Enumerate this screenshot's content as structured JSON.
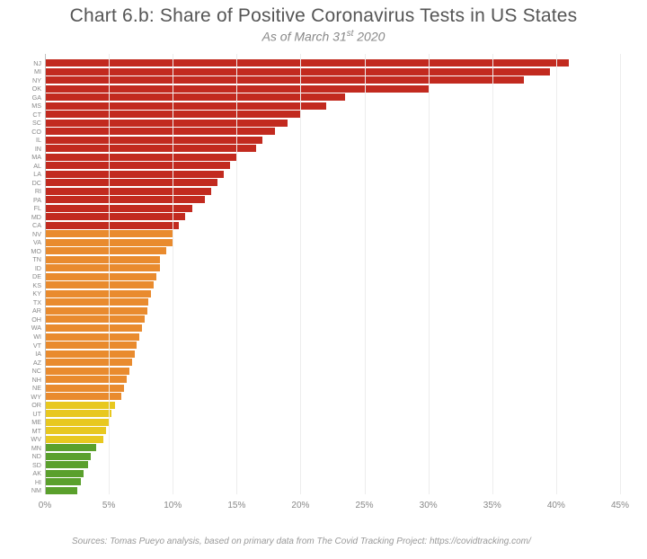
{
  "title": "Chart 6.b: Share of Positive Coronavirus Tests in US States",
  "title_fontsize": 21,
  "title_color": "#555555",
  "subtitle_html": "As of March 31<sup>st</sup> 2020",
  "subtitle_fontsize": 14,
  "subtitle_color": "#888888",
  "source": "Sources: Tomas Pueyo analysis, based on primary data from The Covid Tracking Project: https://covidtracking.com/",
  "source_fontsize": 10,
  "source_color": "#999999",
  "background_color": "#ffffff",
  "chart": {
    "type": "bar_horizontal",
    "x_axis": {
      "min": 0,
      "max": 45,
      "tick_step": 5,
      "ticks": [
        0,
        5,
        10,
        15,
        20,
        25,
        30,
        35,
        40,
        45
      ],
      "tick_format_suffix": "%",
      "tick_fontsize": 10,
      "tick_color": "#888888"
    },
    "gridline_colors": {
      "zero": "#bfbfbf",
      "other": "#ededed"
    },
    "bar_label_fontsize": 7.2,
    "bar_label_color": "#888888",
    "color_tiers": {
      "red": "#c22a1f",
      "orange": "#e98b2e",
      "yellow": "#e8c81f",
      "green": "#5aa02c"
    },
    "bars": [
      {
        "label": "NJ",
        "value": 41.0,
        "color": "#c22a1f"
      },
      {
        "label": "MI",
        "value": 39.5,
        "color": "#c22a1f"
      },
      {
        "label": "NY",
        "value": 37.5,
        "color": "#c22a1f"
      },
      {
        "label": "OK",
        "value": 30.0,
        "color": "#c22a1f"
      },
      {
        "label": "GA",
        "value": 23.5,
        "color": "#c22a1f"
      },
      {
        "label": "MS",
        "value": 22.0,
        "color": "#c22a1f"
      },
      {
        "label": "CT",
        "value": 20.0,
        "color": "#c22a1f"
      },
      {
        "label": "SC",
        "value": 19.0,
        "color": "#c22a1f"
      },
      {
        "label": "CO",
        "value": 18.0,
        "color": "#c22a1f"
      },
      {
        "label": "IL",
        "value": 17.0,
        "color": "#c22a1f"
      },
      {
        "label": "IN",
        "value": 16.5,
        "color": "#c22a1f"
      },
      {
        "label": "MA",
        "value": 15.0,
        "color": "#c22a1f"
      },
      {
        "label": "AL",
        "value": 14.5,
        "color": "#c22a1f"
      },
      {
        "label": "LA",
        "value": 14.0,
        "color": "#c22a1f"
      },
      {
        "label": "DC",
        "value": 13.5,
        "color": "#c22a1f"
      },
      {
        "label": "RI",
        "value": 13.0,
        "color": "#c22a1f"
      },
      {
        "label": "PA",
        "value": 12.5,
        "color": "#c22a1f"
      },
      {
        "label": "FL",
        "value": 11.5,
        "color": "#c22a1f"
      },
      {
        "label": "MD",
        "value": 11.0,
        "color": "#c22a1f"
      },
      {
        "label": "CA",
        "value": 10.5,
        "color": "#c22a1f"
      },
      {
        "label": "NV",
        "value": 10.0,
        "color": "#e98b2e"
      },
      {
        "label": "VA",
        "value": 10.0,
        "color": "#e98b2e"
      },
      {
        "label": "MO",
        "value": 9.5,
        "color": "#e98b2e"
      },
      {
        "label": "TN",
        "value": 9.0,
        "color": "#e98b2e"
      },
      {
        "label": "ID",
        "value": 9.0,
        "color": "#e98b2e"
      },
      {
        "label": "DE",
        "value": 8.7,
        "color": "#e98b2e"
      },
      {
        "label": "KS",
        "value": 8.5,
        "color": "#e98b2e"
      },
      {
        "label": "KY",
        "value": 8.3,
        "color": "#e98b2e"
      },
      {
        "label": "TX",
        "value": 8.1,
        "color": "#e98b2e"
      },
      {
        "label": "AR",
        "value": 8.0,
        "color": "#e98b2e"
      },
      {
        "label": "OH",
        "value": 7.8,
        "color": "#e98b2e"
      },
      {
        "label": "WA",
        "value": 7.6,
        "color": "#e98b2e"
      },
      {
        "label": "WI",
        "value": 7.4,
        "color": "#e98b2e"
      },
      {
        "label": "VT",
        "value": 7.2,
        "color": "#e98b2e"
      },
      {
        "label": "IA",
        "value": 7.0,
        "color": "#e98b2e"
      },
      {
        "label": "AZ",
        "value": 6.8,
        "color": "#e98b2e"
      },
      {
        "label": "NC",
        "value": 6.6,
        "color": "#e98b2e"
      },
      {
        "label": "NH",
        "value": 6.4,
        "color": "#e98b2e"
      },
      {
        "label": "NE",
        "value": 6.2,
        "color": "#e98b2e"
      },
      {
        "label": "WY",
        "value": 6.0,
        "color": "#e98b2e"
      },
      {
        "label": "OR",
        "value": 5.5,
        "color": "#e8c81f"
      },
      {
        "label": "UT",
        "value": 5.2,
        "color": "#e8c81f"
      },
      {
        "label": "ME",
        "value": 5.0,
        "color": "#e8c81f"
      },
      {
        "label": "MT",
        "value": 4.8,
        "color": "#e8c81f"
      },
      {
        "label": "WV",
        "value": 4.6,
        "color": "#e8c81f"
      },
      {
        "label": "MN",
        "value": 4.0,
        "color": "#5aa02c"
      },
      {
        "label": "ND",
        "value": 3.6,
        "color": "#5aa02c"
      },
      {
        "label": "SD",
        "value": 3.4,
        "color": "#5aa02c"
      },
      {
        "label": "AK",
        "value": 3.0,
        "color": "#5aa02c"
      },
      {
        "label": "HI",
        "value": 2.8,
        "color": "#5aa02c"
      },
      {
        "label": "NM",
        "value": 2.5,
        "color": "#5aa02c"
      }
    ]
  }
}
